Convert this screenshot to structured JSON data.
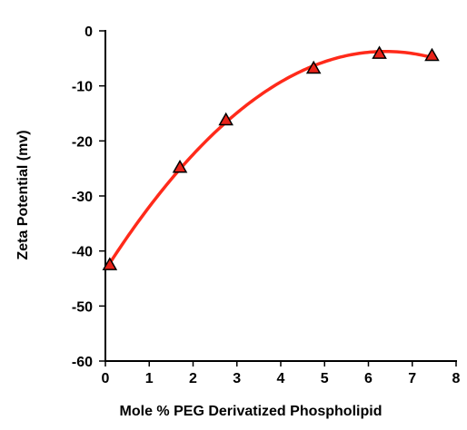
{
  "chart_data": {
    "type": "scatter",
    "title": "",
    "xlabel": "Mole % PEG Derivatized Phospholipid",
    "ylabel": "Zeta Potential (mv)",
    "xlim": [
      0,
      8
    ],
    "ylim": [
      -60,
      0
    ],
    "xticks": [
      0,
      1,
      2,
      3,
      4,
      5,
      6,
      7,
      8
    ],
    "yticks": [
      0,
      -10,
      -20,
      -30,
      -40,
      -50,
      -60
    ],
    "grid": false,
    "legend": "none",
    "series": [
      {
        "marker": "triangle",
        "marker_color": "#e8231a",
        "x": [
          0.1,
          1.7,
          2.75,
          4.75,
          6.25,
          7.45
        ],
        "y": [
          -42.5,
          -24.8,
          -16.2,
          -6.8,
          -4.1,
          -4.5
        ]
      }
    ],
    "fit_curve": {
      "type": "polynomial",
      "color": "#ff2a1a",
      "x_range": [
        0.1,
        7.45
      ]
    }
  }
}
